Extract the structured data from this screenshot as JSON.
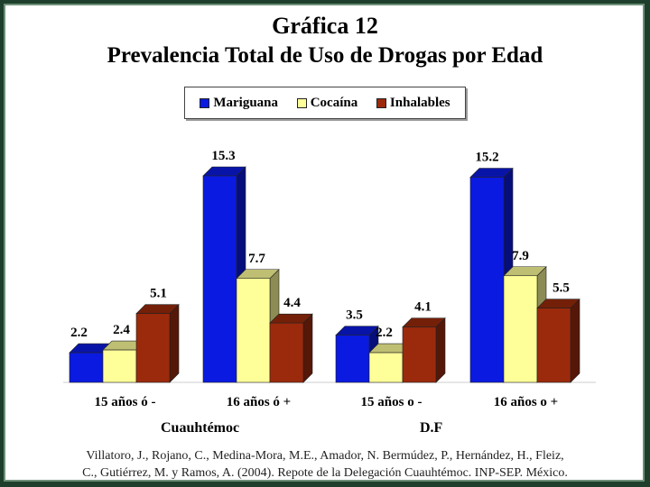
{
  "title_line1": "Gráfica 12",
  "title_line2": "Prevalencia Total de Uso de Drogas por Edad",
  "group_labels": [
    "Cuauhtémoc",
    "D.F"
  ],
  "citation_line1": "Villatoro, J., Rojano, C., Medina-Mora, M.E., Amador, N. Bermúdez, P., Hernández, H., Fleiz,",
  "citation_line2": "C., Gutiérrez, M. y Ramos, A. (2004). Repote de la Delegación Cuauhtémoc. INP-SEP. México.",
  "chart_data": {
    "type": "bar",
    "style": "3d-clustered",
    "title": "Gráfica 12 Prevalencia Total de Uso de Drogas por Edad",
    "categories": [
      "15 años ó -",
      "16 años ó +",
      "15 años o -",
      "16 años o +"
    ],
    "series": [
      {
        "name": "Mariguana",
        "values": [
          2.2,
          15.3,
          3.5,
          15.2
        ],
        "color": "#0a1ae0"
      },
      {
        "name": "Cocaína",
        "values": [
          2.4,
          7.7,
          2.2,
          7.9
        ],
        "color": "#ffff99"
      },
      {
        "name": "Inhalables",
        "values": [
          5.1,
          4.4,
          4.1,
          5.5
        ],
        "color": "#9b2a0c"
      }
    ],
    "data_labels": [
      [
        "2.2",
        "15.3",
        "3.5",
        "15.2"
      ],
      [
        "2.4",
        "7.7",
        "2.2",
        "7.9"
      ],
      [
        "5.1",
        "4.4",
        "4.1",
        "5.5"
      ]
    ],
    "ylim": [
      0,
      15.3
    ],
    "grid": false,
    "legend_position": "top-center"
  }
}
